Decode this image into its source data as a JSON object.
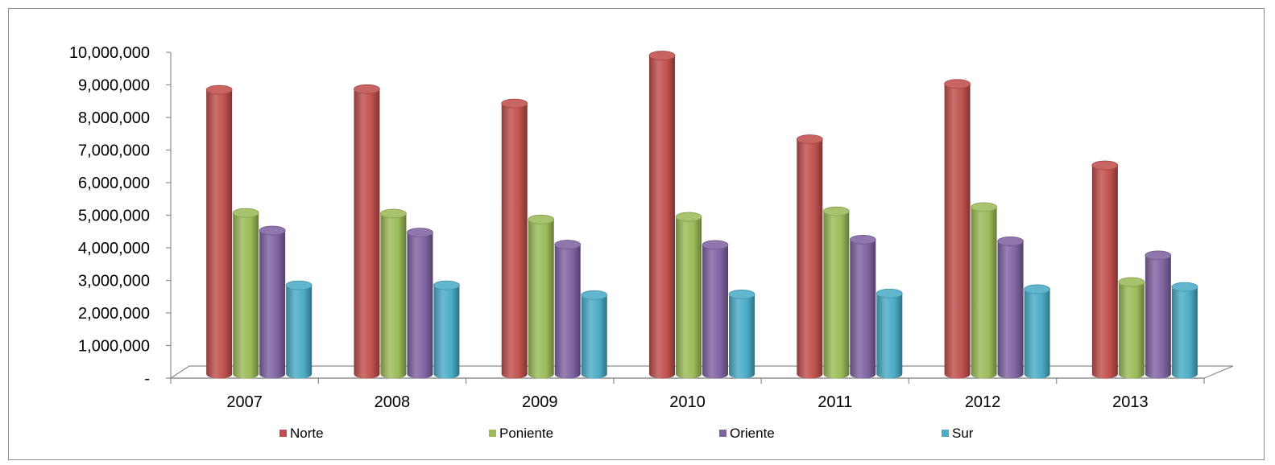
{
  "chart_data": {
    "type": "bar",
    "style": "3d-cylinder",
    "categories": [
      "2007",
      "2008",
      "2009",
      "2010",
      "2011",
      "2012",
      "2013"
    ],
    "series": [
      {
        "name": "Norte",
        "color": "#c0504d",
        "values": [
          8800000,
          8820000,
          8380000,
          9850000,
          7280000,
          8980000,
          6480000
        ]
      },
      {
        "name": "Poniente",
        "color": "#9bbb59",
        "values": [
          5020000,
          5000000,
          4820000,
          4900000,
          5070000,
          5200000,
          2900000
        ]
      },
      {
        "name": "Oriente",
        "color": "#8064a2",
        "values": [
          4480000,
          4420000,
          4050000,
          4040000,
          4200000,
          4150000,
          3720000
        ]
      },
      {
        "name": "Sur",
        "color": "#4bacc6",
        "values": [
          2800000,
          2800000,
          2500000,
          2520000,
          2550000,
          2680000,
          2750000
        ]
      }
    ],
    "y_tick_labels": [
      "-",
      "1,000,000",
      "2,000,000",
      "3,000,000",
      "4,000,000",
      "5,000,000",
      "6,000,000",
      "7,000,000",
      "8,000,000",
      "9,000,000",
      "10,000,000"
    ],
    "ylim": [
      0,
      10000000
    ],
    "ystep": 1000000,
    "grid": false,
    "legend_position": "bottom"
  }
}
